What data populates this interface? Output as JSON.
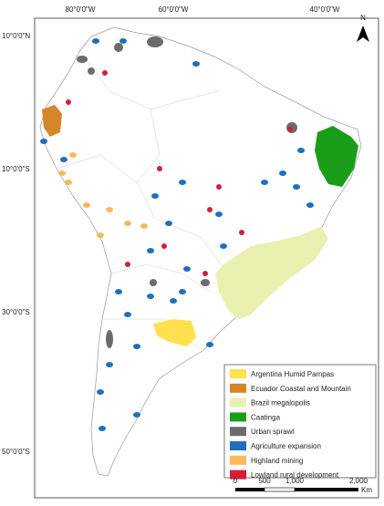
{
  "map": {
    "graticule": {
      "top": [
        "80°0'0\"W",
        "60°0'0\"W",
        "40°0'0\"W"
      ],
      "left": [
        "10°0'0\"N",
        "10°0'0\"S",
        "30°0'0\"S",
        "50°0'0\"S"
      ]
    },
    "north": "N",
    "legend": [
      {
        "name": "Argentina Humid Pampas",
        "color": "#ffe14d"
      },
      {
        "name": "Ecuador Coastal and Mountain",
        "color": "#d4862a"
      },
      {
        "name": "Brazil megalopolis",
        "color": "#e9f0b0"
      },
      {
        "name": "Caatinga",
        "color": "#1a9e1a"
      },
      {
        "name": "Urban sprawl",
        "color": "#6b6b6b"
      },
      {
        "name": "Agriculture expansion",
        "color": "#1f6fbf"
      },
      {
        "name": "Highland mining",
        "color": "#ffb85c"
      },
      {
        "name": "Lowland rural development",
        "color": "#d0203a"
      }
    ],
    "scale": {
      "labels": [
        "0",
        "500",
        "1,000",
        "2,000"
      ],
      "unit": "Km"
    }
  }
}
